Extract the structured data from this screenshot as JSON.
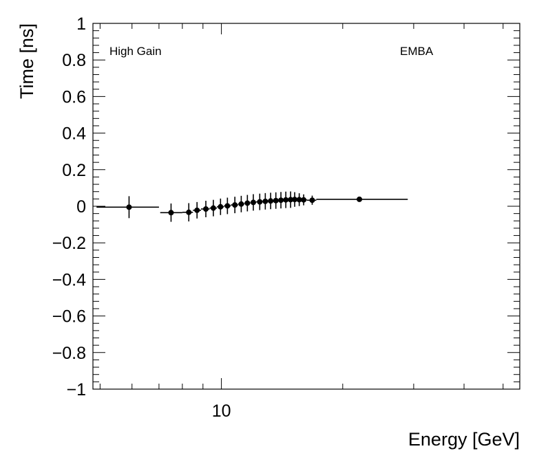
{
  "chart_data": {
    "type": "scatter",
    "xlabel": "Energy [GeV]",
    "ylabel": "Time [ns]",
    "xscale": "log",
    "xlim": [
      4.8,
      55
    ],
    "ylim": [
      -1,
      1
    ],
    "grid": false,
    "x_ticks": [
      {
        "value": 10,
        "label": "10"
      }
    ],
    "y_ticks": [
      {
        "value": -1,
        "label": "−1"
      },
      {
        "value": -0.8,
        "label": "−0.8"
      },
      {
        "value": -0.6,
        "label": "−0.6"
      },
      {
        "value": -0.4,
        "label": "−0.4"
      },
      {
        "value": -0.2,
        "label": "−0.2"
      },
      {
        "value": 0,
        "label": "0"
      },
      {
        "value": 0.2,
        "label": "0.2"
      },
      {
        "value": 0.4,
        "label": "0.4"
      },
      {
        "value": 0.6,
        "label": "0.6"
      },
      {
        "value": 0.8,
        "label": "0.8"
      },
      {
        "value": 1,
        "label": "1"
      }
    ],
    "annotations": {
      "left": "High Gain",
      "right": "EMBA"
    },
    "points": [
      {
        "x": 5.9,
        "y": -0.005,
        "xlo": 4.9,
        "xhi": 7.0,
        "err": 0.06
      },
      {
        "x": 7.5,
        "y": -0.035,
        "xlo": 7.05,
        "xhi": 8.0,
        "err": 0.05
      },
      {
        "x": 8.3,
        "y": -0.033,
        "xlo": 8.0,
        "xhi": 8.5,
        "err": 0.05
      },
      {
        "x": 8.7,
        "y": -0.022,
        "xlo": 8.5,
        "xhi": 8.9,
        "err": 0.045
      },
      {
        "x": 9.15,
        "y": -0.015,
        "xlo": 8.9,
        "xhi": 9.35,
        "err": 0.045
      },
      {
        "x": 9.55,
        "y": -0.01,
        "xlo": 9.35,
        "xhi": 9.75,
        "err": 0.045
      },
      {
        "x": 9.95,
        "y": -0.003,
        "xlo": 9.75,
        "xhi": 10.15,
        "err": 0.045
      },
      {
        "x": 10.35,
        "y": 0.002,
        "xlo": 10.15,
        "xhi": 10.55,
        "err": 0.045
      },
      {
        "x": 10.8,
        "y": 0.007,
        "xlo": 10.55,
        "xhi": 11.0,
        "err": 0.045
      },
      {
        "x": 11.2,
        "y": 0.012,
        "xlo": 11.0,
        "xhi": 11.4,
        "err": 0.045
      },
      {
        "x": 11.6,
        "y": 0.017,
        "xlo": 11.4,
        "xhi": 11.8,
        "err": 0.045
      },
      {
        "x": 12.0,
        "y": 0.021,
        "xlo": 11.8,
        "xhi": 12.2,
        "err": 0.045
      },
      {
        "x": 12.45,
        "y": 0.024,
        "xlo": 12.2,
        "xhi": 12.65,
        "err": 0.045
      },
      {
        "x": 12.85,
        "y": 0.027,
        "xlo": 12.65,
        "xhi": 13.05,
        "err": 0.045
      },
      {
        "x": 13.25,
        "y": 0.029,
        "xlo": 13.05,
        "xhi": 13.45,
        "err": 0.045
      },
      {
        "x": 13.65,
        "y": 0.031,
        "xlo": 13.45,
        "xhi": 13.85,
        "err": 0.045
      },
      {
        "x": 14.05,
        "y": 0.033,
        "xlo": 13.85,
        "xhi": 14.25,
        "err": 0.045
      },
      {
        "x": 14.45,
        "y": 0.035,
        "xlo": 14.25,
        "xhi": 14.65,
        "err": 0.045
      },
      {
        "x": 14.85,
        "y": 0.036,
        "xlo": 14.65,
        "xhi": 15.05,
        "err": 0.045
      },
      {
        "x": 15.2,
        "y": 0.037,
        "xlo": 15.05,
        "xhi": 15.35,
        "err": 0.04
      },
      {
        "x": 15.6,
        "y": 0.036,
        "xlo": 15.35,
        "xhi": 15.8,
        "err": 0.035
      },
      {
        "x": 16.0,
        "y": 0.035,
        "xlo": 15.8,
        "xhi": 16.3,
        "err": 0.03
      },
      {
        "x": 16.8,
        "y": 0.033,
        "xlo": 16.3,
        "xhi": 17.2,
        "err": 0.025
      },
      {
        "x": 22.0,
        "y": 0.038,
        "xlo": 17.2,
        "xhi": 29.0,
        "err": 0.012
      }
    ]
  }
}
